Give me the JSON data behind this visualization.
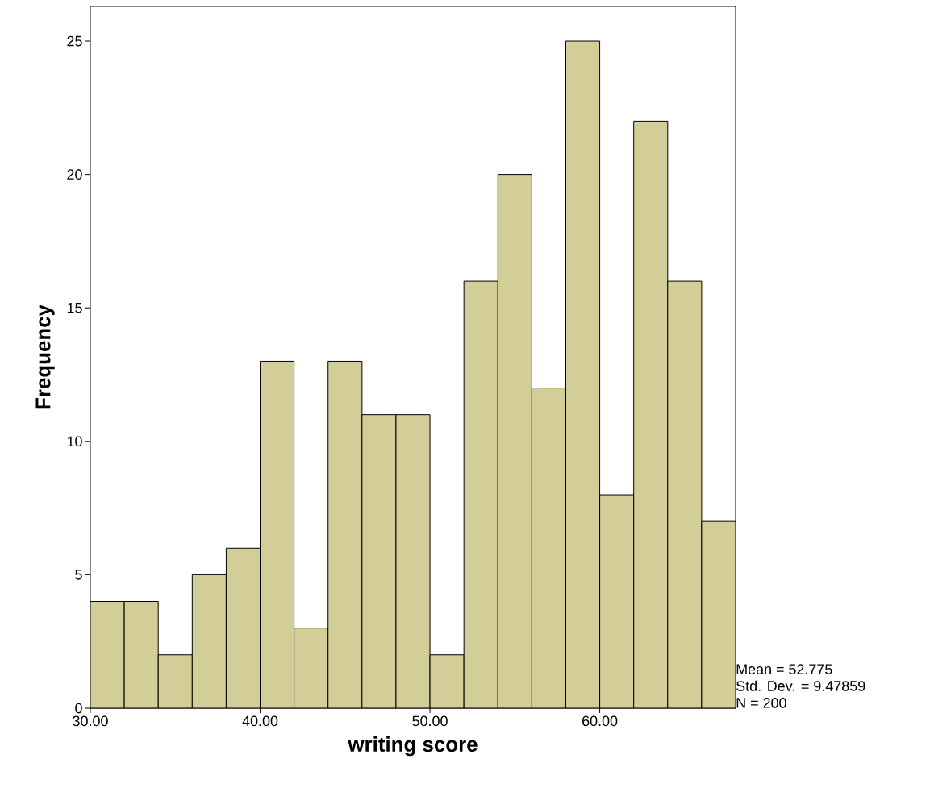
{
  "chart_data": {
    "type": "histogram",
    "xlabel": "writing score",
    "ylabel": "Frequency",
    "bins": [
      30,
      32,
      34,
      36,
      38,
      40,
      42,
      44,
      46,
      48,
      50,
      52,
      54,
      56,
      58,
      60,
      62,
      64,
      66,
      68
    ],
    "values": [
      4,
      4,
      2,
      5,
      6,
      13,
      3,
      13,
      11,
      11,
      2,
      16,
      20,
      12,
      25,
      8,
      22,
      16,
      7
    ],
    "color": "#d3ce97",
    "xlim": [
      30,
      68
    ],
    "xticks": [
      {
        "value": 30,
        "label": "30.00"
      },
      {
        "value": 40,
        "label": "40.00"
      },
      {
        "value": 50,
        "label": "50.00"
      },
      {
        "value": 60,
        "label": "60.00"
      }
    ],
    "ylim": [
      0,
      26.3
    ],
    "yticks": [
      0,
      5,
      10,
      15,
      20,
      25
    ],
    "grid": false,
    "annotations": [
      "Mean = 52.775",
      "Std. Dev. = 9.47859",
      "N = 200"
    ]
  }
}
